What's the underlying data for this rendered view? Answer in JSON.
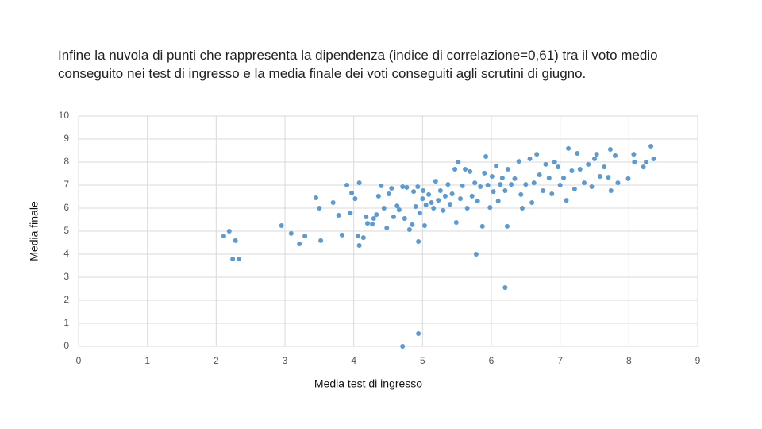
{
  "chart_data": {
    "type": "scatter",
    "title": "Infine la nuvola di punti che rappresenta la dipendenza (indice di correlazione=0,61) tra il voto medio conseguito nei test di ingresso e la media finale dei voti conseguiti agli scrutini di giugno.",
    "x_label": "Media test di ingresso",
    "y_label": "Media finale",
    "xlim": [
      0,
      9
    ],
    "xticks": [
      0,
      1,
      2,
      3,
      4,
      5,
      6,
      7,
      8,
      9
    ],
    "ylim": [
      0,
      10
    ],
    "yticks": [
      0,
      1,
      2,
      3,
      4,
      5,
      6,
      7,
      8,
      9,
      10
    ],
    "grid": true,
    "color": "#5b9bd5",
    "x": [
      2.11,
      2.19,
      2.28,
      2.24,
      2.33,
      2.95,
      3.09,
      3.21,
      3.29,
      3.45,
      3.5,
      3.52,
      3.7,
      3.78,
      3.83,
      3.9,
      3.95,
      3.97,
      4.02,
      4.06,
      4.08,
      4.08,
      4.14,
      4.18,
      4.2,
      4.27,
      4.29,
      4.33,
      4.36,
      4.4,
      4.44,
      4.48,
      4.51,
      4.55,
      4.58,
      4.63,
      4.66,
      4.71,
      4.74,
      4.77,
      4.81,
      4.85,
      4.87,
      4.9,
      4.93,
      4.94,
      4.96,
      4.94,
      4.71,
      5.0,
      5.01,
      5.03,
      5.05,
      5.09,
      5.13,
      5.16,
      5.19,
      5.23,
      5.26,
      5.3,
      5.33,
      5.37,
      5.4,
      5.43,
      5.47,
      5.49,
      5.52,
      5.55,
      5.58,
      5.62,
      5.65,
      5.69,
      5.72,
      5.76,
      5.78,
      5.8,
      5.84,
      5.87,
      5.9,
      5.92,
      5.95,
      5.98,
      6.01,
      6.03,
      6.07,
      6.1,
      6.13,
      6.16,
      6.2,
      6.2,
      6.23,
      6.24,
      6.29,
      6.34,
      6.4,
      6.43,
      6.45,
      6.5,
      6.56,
      6.59,
      6.62,
      6.66,
      6.7,
      6.75,
      6.79,
      6.84,
      6.88,
      6.92,
      6.97,
      7.0,
      7.05,
      7.09,
      7.12,
      7.17,
      7.21,
      7.25,
      7.29,
      7.35,
      7.41,
      7.46,
      7.5,
      7.53,
      7.58,
      7.64,
      7.7,
      7.73,
      7.74,
      7.8,
      7.84,
      7.99,
      8.07,
      8.08,
      8.21,
      8.25,
      8.32,
      8.36
    ],
    "y": [
      4.79,
      5.0,
      4.59,
      3.79,
      3.79,
      5.24,
      4.9,
      4.45,
      4.79,
      6.45,
      6.0,
      4.59,
      6.24,
      5.69,
      4.83,
      7.0,
      5.79,
      6.66,
      6.41,
      4.79,
      4.38,
      7.1,
      4.72,
      5.62,
      5.34,
      5.31,
      5.55,
      5.72,
      6.52,
      6.97,
      6.0,
      5.14,
      6.62,
      6.86,
      5.62,
      6.1,
      5.93,
      6.93,
      5.55,
      6.9,
      5.07,
      5.28,
      6.72,
      6.07,
      6.93,
      4.55,
      5.79,
      0.55,
      0,
      6.41,
      6.76,
      5.24,
      6.14,
      6.59,
      6.24,
      6.0,
      7.17,
      6.34,
      6.76,
      5.9,
      6.52,
      7.03,
      6.17,
      6.62,
      7.69,
      5.38,
      8.0,
      6.41,
      6.97,
      7.69,
      6.0,
      7.59,
      6.52,
      7.1,
      4.0,
      6.31,
      6.93,
      5.21,
      7.52,
      8.24,
      7.0,
      6.03,
      7.38,
      6.72,
      7.83,
      6.31,
      7.03,
      7.31,
      2.55,
      6.76,
      5.21,
      7.69,
      7.03,
      7.28,
      8.03,
      6.59,
      6.0,
      7.03,
      8.14,
      6.24,
      7.1,
      8.34,
      7.45,
      6.76,
      7.9,
      7.31,
      6.62,
      8.0,
      7.79,
      7.0,
      7.31,
      6.34,
      8.59,
      7.62,
      6.83,
      8.38,
      7.69,
      7.1,
      7.9,
      6.93,
      8.14,
      8.34,
      7.38,
      7.79,
      7.34,
      8.55,
      6.76,
      8.28,
      7.1,
      7.28,
      8.34,
      8.0,
      7.79,
      8.0,
      8.69,
      8.14
    ]
  }
}
